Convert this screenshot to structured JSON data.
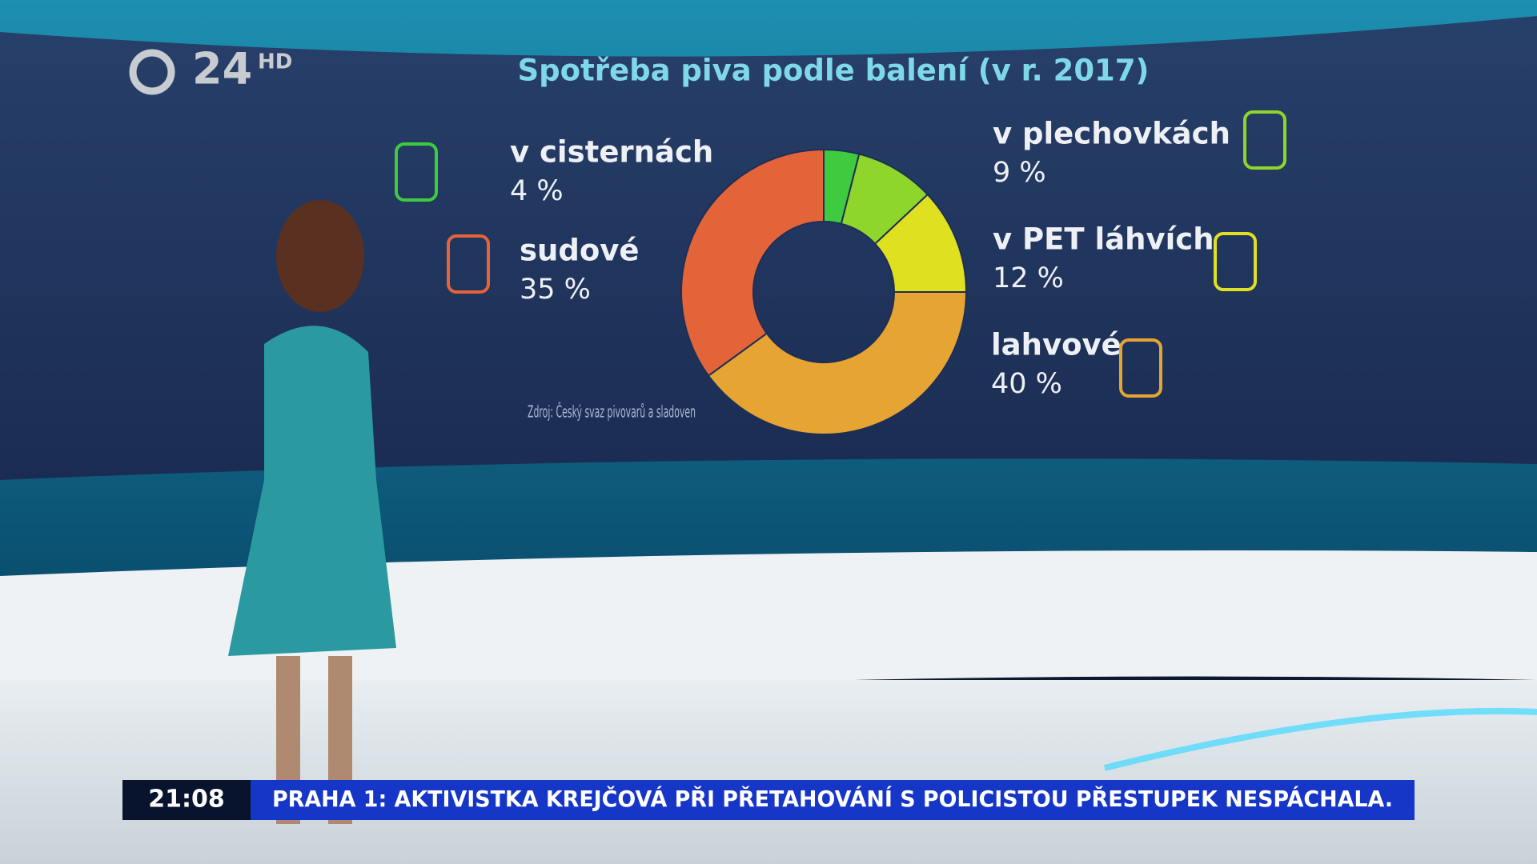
{
  "chart_data": {
    "type": "donut",
    "title": "Spotřeba piva podle balení (v r. 2017)",
    "categories": [
      "v cisternách",
      "v plechovkách",
      "v PET láhvích",
      "lahvové",
      "sudové"
    ],
    "values": [
      4,
      9,
      12,
      40,
      35
    ],
    "value_labels": [
      "4 %",
      "9 %",
      "12 %",
      "40 %",
      "35 %"
    ],
    "colors": [
      "#3fcb3f",
      "#8fd62c",
      "#dfe01f",
      "#e6a433",
      "#e4643a"
    ],
    "source": "Zdroj: Český svaz pivovarů a sladoven"
  },
  "broadcast": {
    "channel": "24",
    "quality": "HD",
    "time": "21:08",
    "headline": "PRAHA 1: AKTIVISTKA KREJČOVÁ PŘI PŘETAHOVÁNÍ S POLICISTOU PŘESTUPEK NESPÁCHALA."
  }
}
